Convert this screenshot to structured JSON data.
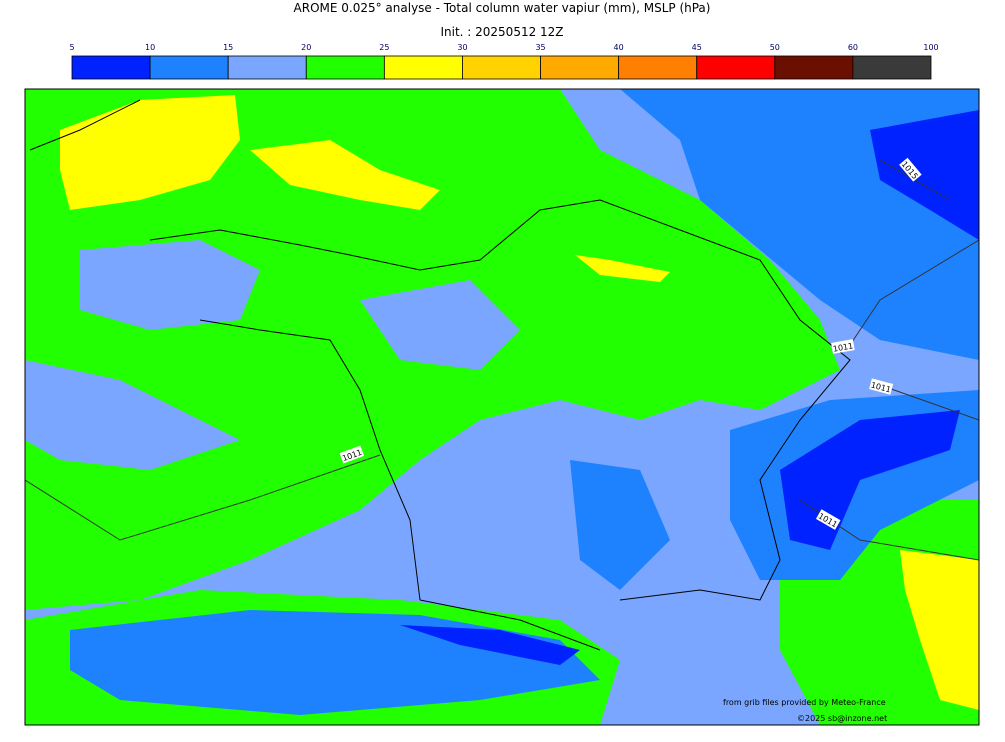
{
  "header": {
    "title": "AROME 0.025° analyse - Total column water vapiur (mm), MSLP (hPa)",
    "subtitle": "Init. : 20250512 12Z"
  },
  "colorbar": {
    "ticks": [
      5,
      10,
      15,
      20,
      25,
      30,
      35,
      40,
      45,
      50,
      60,
      100
    ],
    "colors": [
      "#0022ff",
      "#1e82ff",
      "#7aa6ff",
      "#22ff00",
      "#ffff00",
      "#ffd200",
      "#ffaa00",
      "#ff7f00",
      "#ff0000",
      "#6b1000",
      "#3a3a3a"
    ]
  },
  "map": {
    "isobar_labels": [
      "1015",
      "1011",
      "1011",
      "1011",
      "1011"
    ],
    "credits": [
      "from grib files provided by Meteo-France",
      "©2025 sb@inzone.net"
    ]
  }
}
